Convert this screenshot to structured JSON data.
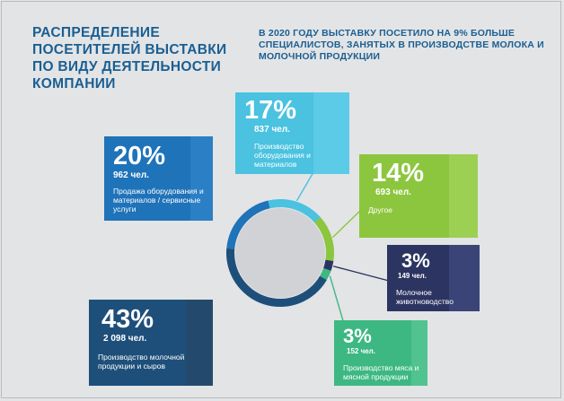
{
  "header": {
    "title": "РАСПРЕДЕЛЕНИЕ ПОСЕТИТЕЛЕЙ ВЫСТАВКИ ПО ВИДУ ДЕЯТЕЛЬНОСТИ КОМПАНИИ",
    "subtitle": "В 2020 ГОДУ ВЫСТАВКУ ПОСЕТИЛО НА 9% БОЛЬШЕ СПЕЦИАЛИСТОВ, ЗАНЯТЫХ В ПРОИЗВОДСТВЕ МОЛОКА И МОЛОЧНОЙ ПРОДУКЦИИ"
  },
  "colors": {
    "background": "#e3e4e6",
    "title": "#1a5f92",
    "ring_inner": "#d0d2d6"
  },
  "chart_data": {
    "type": "pie",
    "style": "donut",
    "slices": [
      {
        "id": "equipment-production",
        "percent": 17,
        "percent_label": "17%",
        "count": 837,
        "count_label": "837 чел.",
        "label": "Производство оборудования и материалов",
        "color": "#4ac2e0",
        "strip_color": "#5ccbe7"
      },
      {
        "id": "other",
        "percent": 14,
        "percent_label": "14%",
        "count": 693,
        "count_label": "693 чел.",
        "label": "Другое",
        "color": "#8cc63e",
        "strip_color": "#9cd053"
      },
      {
        "id": "dairy-farming",
        "percent": 3,
        "percent_label": "3%",
        "count": 149,
        "count_label": "149 чел.",
        "label": "Молочное животноводство",
        "color": "#2c3461",
        "strip_color": "#3a4476"
      },
      {
        "id": "meat-production",
        "percent": 3,
        "percent_label": "3%",
        "count": 152,
        "count_label": "152 чел.",
        "label": "Производство мяса и мясной продукции",
        "color": "#3db882",
        "strip_color": "#50c38f"
      },
      {
        "id": "dairy-production",
        "percent": 43,
        "percent_label": "43%",
        "count": 2098,
        "count_label": "2 098 чел.",
        "label": "Производство молочной продукции и сыров",
        "color": "#1e4f7a",
        "strip_color": "#234a6d"
      },
      {
        "id": "equipment-sales",
        "percent": 20,
        "percent_label": "20%",
        "count": 962,
        "count_label": "962 чел.",
        "label": "Продажа оборудования и материалов / сервисные услуги",
        "color": "#1f73b9",
        "strip_color": "#2b7fc4"
      }
    ]
  }
}
